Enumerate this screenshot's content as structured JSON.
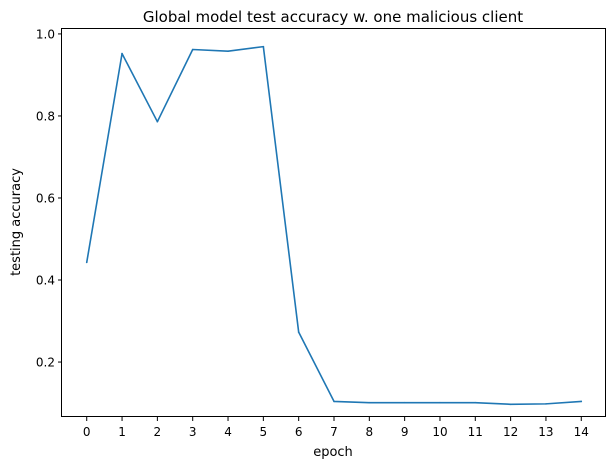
{
  "chart_data": {
    "type": "line",
    "title": "Global model test accuracy w. one malicious client",
    "xlabel": "epoch",
    "ylabel": "testing accuracy",
    "x": [
      0,
      1,
      2,
      3,
      4,
      5,
      6,
      7,
      8,
      9,
      10,
      11,
      12,
      13,
      14
    ],
    "series": [
      {
        "values": [
          0.443,
          0.952,
          0.786,
          0.962,
          0.958,
          0.969,
          0.273,
          0.104,
          0.101,
          0.101,
          0.101,
          0.101,
          0.097,
          0.098,
          0.104
        ],
        "color": "#1f77b4"
      }
    ],
    "xlim": [
      -0.7,
      14.7
    ],
    "ylim": [
      0.066,
      1.012
    ],
    "xticks": [
      0,
      1,
      2,
      3,
      4,
      5,
      6,
      7,
      8,
      9,
      10,
      11,
      12,
      13,
      14
    ],
    "yticks": [
      0.2,
      0.4,
      0.6,
      0.8,
      1.0
    ],
    "ytick_labels": [
      "0.2",
      "0.4",
      "0.6",
      "0.8",
      "1.0"
    ],
    "grid": false,
    "legend": false
  }
}
